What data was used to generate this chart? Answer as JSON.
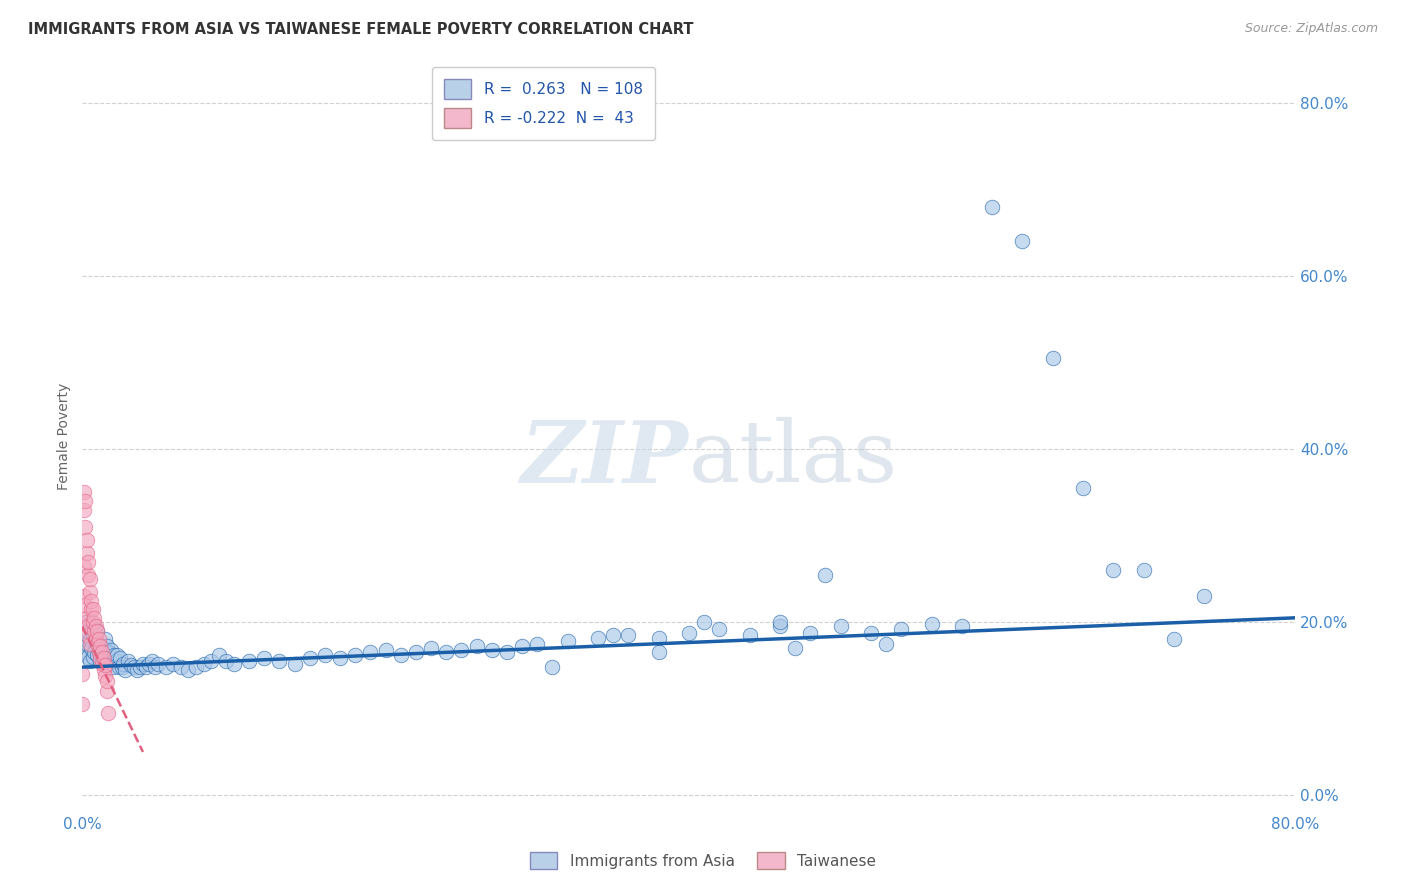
{
  "title": "IMMIGRANTS FROM ASIA VS TAIWANESE FEMALE POVERTY CORRELATION CHART",
  "source": "Source: ZipAtlas.com",
  "xlabel_label": "Immigrants from Asia",
  "xlabel2_label": "Taiwanese",
  "ylabel": "Female Poverty",
  "xmin": 0.0,
  "xmax": 0.8,
  "ymin": -0.02,
  "ymax": 0.85,
  "blue_R": 0.263,
  "blue_N": 108,
  "pink_R": -0.222,
  "pink_N": 43,
  "blue_color": "#aac8e8",
  "pink_color": "#f4a8c0",
  "blue_line_color": "#1a5fa8",
  "pink_line_color": "#e06080",
  "legend_blue_color": "#b8d0e8",
  "legend_pink_color": "#f4b8cc",
  "watermark_zip": "ZIP",
  "watermark_atlas": "atlas",
  "yticks": [
    0.0,
    0.2,
    0.4,
    0.6,
    0.8
  ],
  "ytick_labels": [
    "0.0%",
    "20.0%",
    "40.0%",
    "60.0%",
    "80.0%"
  ],
  "xtick_labels_left": "0.0%",
  "xtick_labels_right": "80.0%",
  "blue_scatter_x": [
    0.001,
    0.002,
    0.003,
    0.003,
    0.004,
    0.004,
    0.005,
    0.005,
    0.006,
    0.006,
    0.007,
    0.007,
    0.008,
    0.008,
    0.009,
    0.01,
    0.01,
    0.011,
    0.012,
    0.012,
    0.013,
    0.014,
    0.015,
    0.015,
    0.016,
    0.017,
    0.018,
    0.019,
    0.02,
    0.021,
    0.022,
    0.023,
    0.024,
    0.025,
    0.026,
    0.027,
    0.028,
    0.03,
    0.032,
    0.034,
    0.036,
    0.038,
    0.04,
    0.042,
    0.044,
    0.046,
    0.048,
    0.05,
    0.055,
    0.06,
    0.065,
    0.07,
    0.075,
    0.08,
    0.085,
    0.09,
    0.095,
    0.1,
    0.11,
    0.12,
    0.13,
    0.14,
    0.15,
    0.16,
    0.17,
    0.18,
    0.19,
    0.2,
    0.21,
    0.22,
    0.23,
    0.24,
    0.25,
    0.26,
    0.27,
    0.28,
    0.29,
    0.3,
    0.32,
    0.34,
    0.36,
    0.38,
    0.4,
    0.42,
    0.44,
    0.46,
    0.48,
    0.5,
    0.52,
    0.54,
    0.56,
    0.58,
    0.6,
    0.62,
    0.64,
    0.66,
    0.68,
    0.7,
    0.72,
    0.74,
    0.49,
    0.46,
    0.53,
    0.47,
    0.41,
    0.38,
    0.35,
    0.31
  ],
  "blue_scatter_y": [
    0.175,
    0.165,
    0.2,
    0.175,
    0.19,
    0.16,
    0.18,
    0.155,
    0.2,
    0.17,
    0.185,
    0.16,
    0.195,
    0.165,
    0.178,
    0.19,
    0.162,
    0.175,
    0.168,
    0.155,
    0.16,
    0.17,
    0.18,
    0.155,
    0.172,
    0.165,
    0.158,
    0.168,
    0.148,
    0.162,
    0.155,
    0.162,
    0.148,
    0.158,
    0.148,
    0.152,
    0.145,
    0.155,
    0.15,
    0.148,
    0.145,
    0.148,
    0.152,
    0.148,
    0.152,
    0.155,
    0.148,
    0.152,
    0.148,
    0.152,
    0.148,
    0.145,
    0.148,
    0.152,
    0.155,
    0.162,
    0.155,
    0.152,
    0.155,
    0.158,
    0.155,
    0.152,
    0.158,
    0.162,
    0.158,
    0.162,
    0.165,
    0.168,
    0.162,
    0.165,
    0.17,
    0.165,
    0.168,
    0.172,
    0.168,
    0.165,
    0.172,
    0.175,
    0.178,
    0.182,
    0.185,
    0.182,
    0.188,
    0.192,
    0.185,
    0.195,
    0.188,
    0.195,
    0.188,
    0.192,
    0.198,
    0.195,
    0.68,
    0.64,
    0.505,
    0.355,
    0.26,
    0.26,
    0.18,
    0.23,
    0.255,
    0.2,
    0.175,
    0.17,
    0.2,
    0.165,
    0.185,
    0.148
  ],
  "pink_scatter_x": [
    0.0,
    0.0,
    0.001,
    0.001,
    0.001,
    0.001,
    0.002,
    0.002,
    0.002,
    0.002,
    0.003,
    0.003,
    0.003,
    0.003,
    0.004,
    0.004,
    0.004,
    0.005,
    0.005,
    0.005,
    0.006,
    0.006,
    0.007,
    0.007,
    0.008,
    0.008,
    0.009,
    0.009,
    0.01,
    0.01,
    0.011,
    0.011,
    0.012,
    0.012,
    0.013,
    0.013,
    0.014,
    0.014,
    0.015,
    0.015,
    0.016,
    0.016,
    0.017
  ],
  "pink_scatter_y": [
    0.14,
    0.105,
    0.33,
    0.35,
    0.23,
    0.265,
    0.31,
    0.34,
    0.2,
    0.22,
    0.28,
    0.295,
    0.185,
    0.205,
    0.255,
    0.27,
    0.195,
    0.235,
    0.25,
    0.175,
    0.215,
    0.225,
    0.2,
    0.215,
    0.19,
    0.205,
    0.18,
    0.195,
    0.175,
    0.19,
    0.165,
    0.18,
    0.158,
    0.172,
    0.152,
    0.165,
    0.145,
    0.158,
    0.138,
    0.15,
    0.12,
    0.132,
    0.095
  ],
  "blue_line_x_start": 0.0,
  "blue_line_x_end": 0.8,
  "blue_line_y_start": 0.148,
  "blue_line_y_end": 0.205,
  "pink_line_x_start": 0.0,
  "pink_line_x_end": 0.04,
  "pink_line_y_start": 0.195,
  "pink_line_y_end": 0.05
}
